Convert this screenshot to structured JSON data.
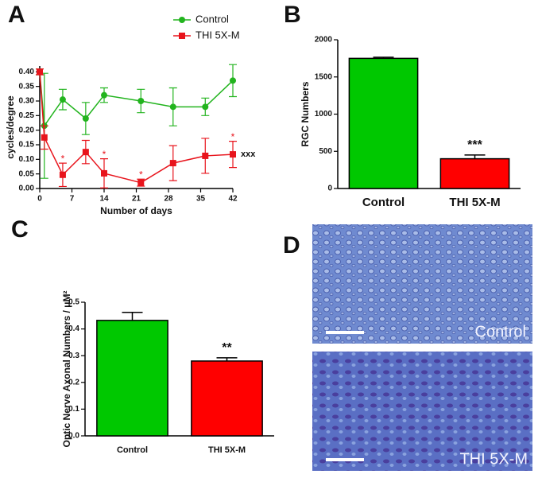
{
  "chart_data": [
    {
      "panel": "A",
      "type": "line",
      "xlabel": "Number of days",
      "ylabel": "cycles/degree",
      "x": [
        0,
        1,
        5,
        10,
        14,
        22,
        29,
        36,
        42
      ],
      "series": [
        {
          "name": "Control",
          "color": "#22b41e",
          "marker": "circle",
          "values": [
            0.4,
            0.215,
            0.305,
            0.24,
            0.32,
            0.3,
            0.28,
            0.28,
            0.37
          ],
          "errors": [
            0.01,
            0.18,
            0.035,
            0.055,
            0.025,
            0.04,
            0.065,
            0.03,
            0.055
          ]
        },
        {
          "name": "THI 5X-M",
          "color": "#e8141c",
          "marker": "square",
          "values": [
            0.4,
            0.175,
            0.047,
            0.125,
            0.052,
            0.02,
            0.087,
            0.112,
            0.117
          ],
          "errors": [
            0.01,
            0.04,
            0.04,
            0.04,
            0.05,
            0.012,
            0.06,
            0.06,
            0.045
          ]
        }
      ],
      "annotations": [
        {
          "series": "THI 5X-M",
          "x": 5,
          "text": "*",
          "position": "above"
        },
        {
          "series": "THI 5X-M",
          "x": 14,
          "text": "*",
          "position": "above"
        },
        {
          "series": "THI 5X-M",
          "x": 22,
          "text": "*",
          "position": "above"
        },
        {
          "series": "THI 5X-M",
          "x": 42,
          "text": "*",
          "position": "above"
        },
        {
          "series": "THI 5X-M",
          "x": 42,
          "text": "xxx",
          "position": "right"
        }
      ],
      "xlim": [
        0,
        42
      ],
      "xticks": [
        0,
        7,
        14,
        21,
        28,
        35,
        42
      ],
      "ylim": [
        0,
        0.42
      ],
      "yticks": [
        {
          "value": 0,
          "label": "0.00"
        },
        {
          "value": 0.05,
          "label": "0.05"
        },
        {
          "value": 0.1,
          "label": "0.10"
        },
        {
          "value": 0.15,
          "label": "0.15"
        },
        {
          "value": 0.2,
          "label": "0.20"
        },
        {
          "value": 0.25,
          "label": "0.25"
        },
        {
          "value": 0.3,
          "label": "0.30"
        },
        {
          "value": 0.35,
          "label": "0.35"
        },
        {
          "value": 0.4,
          "label": "0.40"
        }
      ],
      "legend": "top-right"
    },
    {
      "panel": "B",
      "type": "bar",
      "ylabel": "RGC Numbers",
      "categories": [
        "Control",
        "THI 5X-M"
      ],
      "values": [
        1750,
        400
      ],
      "errors": [
        15,
        50
      ],
      "colors": [
        "#00c800",
        "#ff0000"
      ],
      "annotations": [
        {
          "category": "THI 5X-M",
          "text": "***"
        }
      ],
      "ylim": [
        0,
        2000
      ],
      "yticks": [
        0,
        500,
        1000,
        1500,
        2000
      ]
    },
    {
      "panel": "C",
      "type": "bar",
      "ylabel": "Optic Nerve Axonal Numbers / μM²",
      "categories": [
        "Control",
        "THI 5X-M"
      ],
      "values": [
        0.432,
        0.28
      ],
      "errors": [
        0.03,
        0.012
      ],
      "colors": [
        "#00c800",
        "#ff0000"
      ],
      "annotations": [
        {
          "category": "THI 5X-M",
          "text": "**"
        }
      ],
      "ylim": [
        0,
        0.5
      ],
      "yticks": [
        {
          "value": 0,
          "label": "0.0"
        },
        {
          "value": 0.1,
          "label": "0.1"
        },
        {
          "value": 0.2,
          "label": "0.2"
        },
        {
          "value": 0.3,
          "label": "0.3"
        },
        {
          "value": 0.4,
          "label": "0.4"
        },
        {
          "value": 0.5,
          "label": "0.5"
        }
      ]
    }
  ],
  "panel_d": {
    "panel": "D",
    "images": [
      {
        "label": "Control"
      },
      {
        "label": "THI 5X-M"
      }
    ]
  }
}
